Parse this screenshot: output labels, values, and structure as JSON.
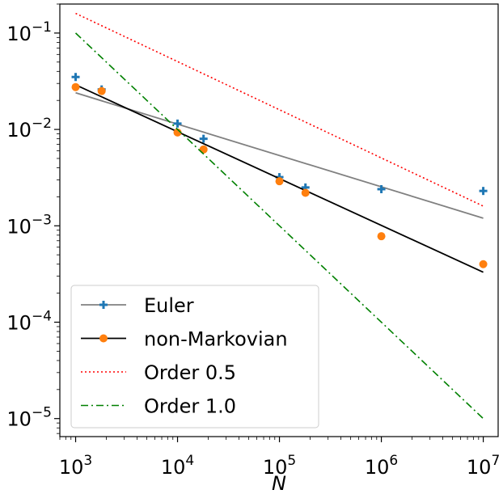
{
  "chart_data": {
    "type": "line",
    "xscale": "log",
    "yscale": "log",
    "xlabel": "N",
    "ylabel": "",
    "xlim": [
      700,
      14000000
    ],
    "ylim": [
      6.5e-06,
      0.2
    ],
    "x_ticks": [
      {
        "value": 1000,
        "base": "10",
        "exp": "3"
      },
      {
        "value": 10000,
        "base": "10",
        "exp": "4"
      },
      {
        "value": 100000,
        "base": "10",
        "exp": "5"
      },
      {
        "value": 1000000,
        "base": "10",
        "exp": "6"
      },
      {
        "value": 10000000,
        "base": "10",
        "exp": "7"
      }
    ],
    "y_ticks": [
      {
        "value": 0.1,
        "base": "10",
        "exp": "−1"
      },
      {
        "value": 0.01,
        "base": "10",
        "exp": "−2"
      },
      {
        "value": 0.001,
        "base": "10",
        "exp": "−3"
      },
      {
        "value": 0.0001,
        "base": "10",
        "exp": "−4"
      },
      {
        "value": 1e-05,
        "base": "10",
        "exp": "−5"
      }
    ],
    "grid": false,
    "legend_position": "lower-left",
    "series": [
      {
        "name": "Euler",
        "marker": "plus",
        "marker_color": "#1f77b4",
        "points": [
          [
            1000,
            0.035
          ],
          [
            1800,
            0.026
          ],
          [
            10000,
            0.0115
          ],
          [
            18000,
            0.008
          ],
          [
            100000,
            0.0032
          ],
          [
            180000,
            0.0025
          ],
          [
            1000000,
            0.0024
          ],
          [
            10000000,
            0.0023
          ]
        ],
        "fit_color": "#808080",
        "fit": [
          [
            1000,
            0.024
          ],
          [
            10000000,
            0.0012
          ]
        ]
      },
      {
        "name": "non-Markovian",
        "marker": "circle",
        "marker_color": "#ff7f0e",
        "points": [
          [
            1000,
            0.0275
          ],
          [
            1800,
            0.025
          ],
          [
            10000,
            0.0093
          ],
          [
            18000,
            0.0062
          ],
          [
            100000,
            0.0029
          ],
          [
            180000,
            0.0022
          ],
          [
            1000000,
            0.00078
          ],
          [
            10000000,
            0.0004
          ]
        ],
        "fit_color": "#000000",
        "fit": [
          [
            1000,
            0.029
          ],
          [
            10000000,
            0.00033
          ]
        ]
      },
      {
        "name": "Order 0.5",
        "style": "dotted",
        "color": "#ff0000",
        "points": [
          [
            1000,
            0.16
          ],
          [
            10000000,
            0.0016
          ]
        ]
      },
      {
        "name": "Order 1.0",
        "style": "dashdot",
        "color": "#008000",
        "points": [
          [
            1000,
            0.1
          ],
          [
            10000000,
            1e-05
          ]
        ]
      }
    ]
  }
}
